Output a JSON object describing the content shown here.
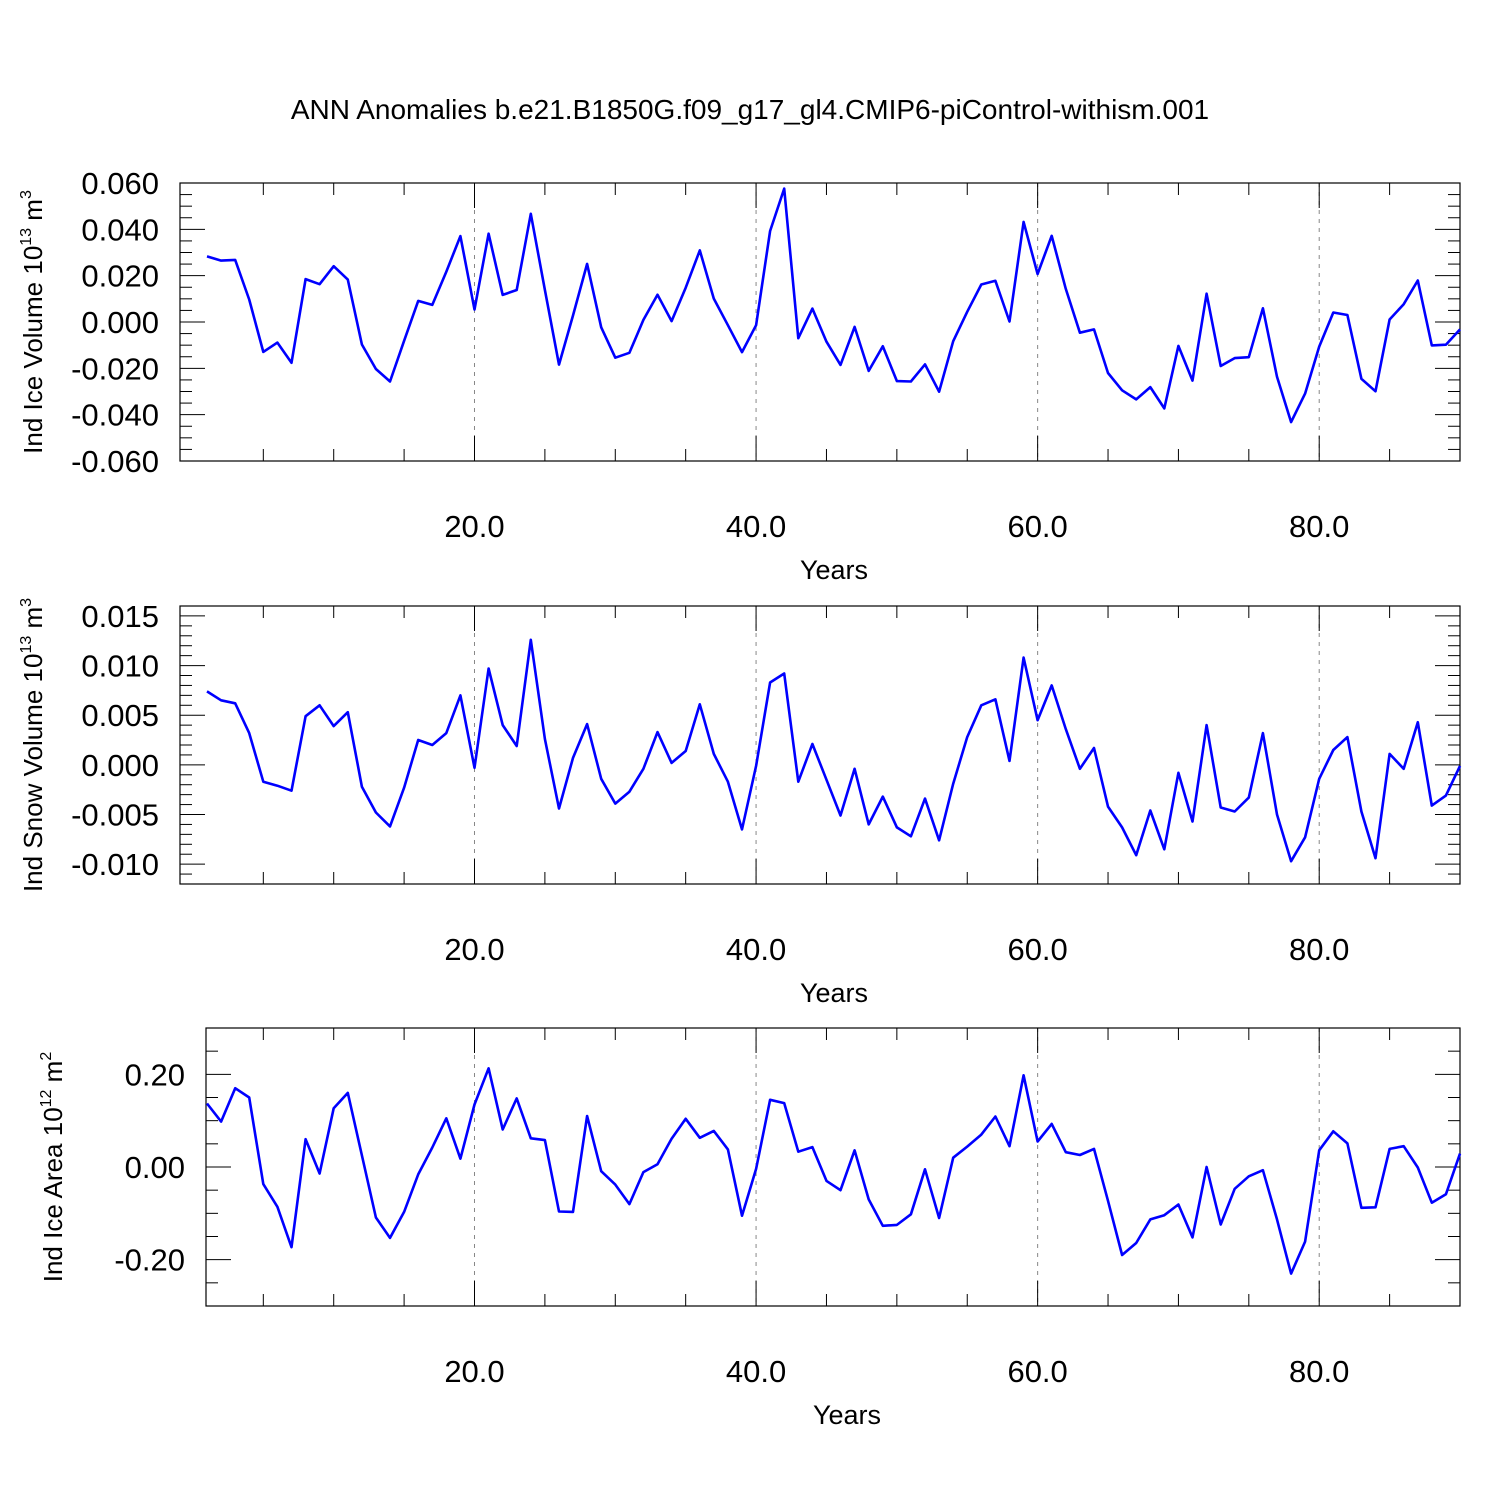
{
  "title": "ANN Anomalies b.e21.B1850G.f09_g17_gl4.CMIP6-piControl-withism.001",
  "chart_data": [
    {
      "type": "line",
      "ylabel": {
        "main": "Ind Ice Volume 10",
        "exp": "13",
        "unit": " m",
        "unit_exp": "3"
      },
      "xlabel": "Years",
      "xlim": [
        1,
        90
      ],
      "ylim": [
        -0.06,
        0.06
      ],
      "x_ticks": [
        20,
        40,
        60,
        80
      ],
      "x_tick_labels": [
        "20.0",
        "40.0",
        "60.0",
        "80.0"
      ],
      "y_ticks": [
        -0.06,
        -0.04,
        -0.02,
        0.0,
        0.02,
        0.04,
        0.06
      ],
      "y_tick_labels": [
        "-0.060",
        "-0.040",
        "-0.020",
        "0.000",
        "0.020",
        "0.040",
        "0.060"
      ],
      "y_minor_step": 0.005,
      "grid": "vertical dashed at major x ticks",
      "line_color": "#0000ff",
      "x_start": 1,
      "x_step": 1,
      "values": [
        0.0283,
        0.0265,
        0.0268,
        0.0097,
        -0.0129,
        -0.0089,
        -0.0176,
        0.0185,
        0.0163,
        0.0241,
        0.0183,
        -0.0097,
        -0.0203,
        -0.0257,
        -0.0081,
        0.0091,
        0.0074,
        0.0217,
        0.0371,
        0.0054,
        0.0381,
        0.0117,
        0.0138,
        0.0467,
        0.0138,
        -0.0184,
        0.0028,
        0.0251,
        -0.0023,
        -0.0154,
        -0.0133,
        0.0009,
        0.0118,
        0.0004,
        0.0148,
        0.0309,
        0.0101,
        -0.0014,
        -0.013,
        -0.0014,
        0.0393,
        0.0576,
        -0.007,
        0.0058,
        -0.0085,
        -0.0185,
        -0.0021,
        -0.0211,
        -0.0105,
        -0.0255,
        -0.0257,
        -0.0183,
        -0.0301,
        -0.0083,
        0.0044,
        0.0162,
        0.0178,
        0.0002,
        0.0432,
        0.0207,
        0.0372,
        0.0143,
        -0.0046,
        -0.0032,
        -0.022,
        -0.0295,
        -0.0334,
        -0.0281,
        -0.0373,
        -0.0103,
        -0.0253,
        0.0122,
        -0.019,
        -0.0156,
        -0.0152,
        0.0059,
        -0.0236,
        -0.0432,
        -0.0309,
        -0.0106,
        0.0041,
        0.003,
        -0.0245,
        -0.0299,
        0.0011,
        0.0077,
        0.0179,
        -0.0101,
        -0.0098,
        -0.0032
      ]
    },
    {
      "type": "line",
      "ylabel": {
        "main": "Ind Snow Volume 10",
        "exp": "13",
        "unit": " m",
        "unit_exp": "3"
      },
      "xlabel": "Years",
      "xlim": [
        1,
        90
      ],
      "ylim": [
        -0.012,
        0.016
      ],
      "x_ticks": [
        20,
        40,
        60,
        80
      ],
      "x_tick_labels": [
        "20.0",
        "40.0",
        "60.0",
        "80.0"
      ],
      "y_ticks": [
        -0.01,
        -0.005,
        0.0,
        0.005,
        0.01,
        0.015
      ],
      "y_tick_labels": [
        "-0.010",
        "-0.005",
        "0.000",
        "0.005",
        "0.010",
        "0.015"
      ],
      "y_minor_step": 0.001,
      "grid": "vertical dashed at major x ticks",
      "line_color": "#0000ff",
      "x_start": 1,
      "x_step": 1,
      "values": [
        0.0074,
        0.0065,
        0.0062,
        0.0032,
        -0.0017,
        -0.0021,
        -0.0026,
        0.0049,
        0.006,
        0.0039,
        0.0053,
        -0.0022,
        -0.0048,
        -0.0062,
        -0.0023,
        0.0025,
        0.002,
        0.0032,
        0.007,
        -0.0003,
        0.0097,
        0.004,
        0.0019,
        0.0126,
        0.0026,
        -0.0044,
        0.0007,
        0.0041,
        -0.0014,
        -0.0039,
        -0.0027,
        -0.0004,
        0.0033,
        0.0002,
        0.0014,
        0.0061,
        0.0011,
        -0.0017,
        -0.0065,
        -0.0001,
        0.0083,
        0.0092,
        -0.0017,
        0.0021,
        -0.0015,
        -0.0051,
        -0.0004,
        -0.006,
        -0.0032,
        -0.0063,
        -0.0072,
        -0.0034,
        -0.0076,
        -0.0019,
        0.0028,
        0.006,
        0.0066,
        0.0004,
        0.0108,
        0.0045,
        0.008,
        0.0036,
        -0.0004,
        0.0017,
        -0.0042,
        -0.0063,
        -0.0091,
        -0.0046,
        -0.0085,
        -0.0008,
        -0.0057,
        0.004,
        -0.0043,
        -0.0047,
        -0.0033,
        0.0032,
        -0.005,
        -0.0097,
        -0.0073,
        -0.0014,
        0.0015,
        0.0028,
        -0.0047,
        -0.0094,
        0.0011,
        -0.0004,
        0.0043,
        -0.0041,
        -0.0031,
        -0.0001
      ]
    },
    {
      "type": "line",
      "ylabel": {
        "main": "Ind Ice Area 10",
        "exp": "12",
        "unit": " m",
        "unit_exp": "2"
      },
      "xlabel": "Years",
      "xlim": [
        1,
        90
      ],
      "ylim": [
        -0.3,
        0.3
      ],
      "x_ticks": [
        20,
        40,
        60,
        80
      ],
      "x_tick_labels": [
        "20.0",
        "40.0",
        "60.0",
        "80.0"
      ],
      "y_ticks": [
        -0.2,
        0.0,
        0.2
      ],
      "y_tick_labels": [
        "-0.20",
        "0.00",
        "0.20"
      ],
      "y_minor_step": 0.05,
      "grid": "vertical dashed at major x ticks",
      "line_color": "#0000ff",
      "x_start": 1,
      "x_step": 1,
      "values": [
        0.137,
        0.098,
        0.17,
        0.15,
        -0.037,
        -0.086,
        -0.173,
        0.06,
        -0.014,
        0.127,
        0.16,
        0.025,
        -0.109,
        -0.153,
        -0.097,
        -0.016,
        0.042,
        0.105,
        0.018,
        0.135,
        0.213,
        0.081,
        0.148,
        0.062,
        0.058,
        -0.096,
        -0.097,
        0.11,
        -0.009,
        -0.038,
        -0.08,
        -0.011,
        0.006,
        0.061,
        0.104,
        0.063,
        0.078,
        0.038,
        -0.105,
        -0.004,
        0.145,
        0.138,
        0.033,
        0.043,
        -0.03,
        -0.05,
        0.036,
        -0.07,
        -0.127,
        -0.125,
        -0.102,
        -0.005,
        -0.11,
        0.02,
        0.044,
        0.07,
        0.109,
        0.045,
        0.198,
        0.055,
        0.093,
        0.032,
        0.026,
        0.039,
        -0.073,
        -0.19,
        -0.164,
        -0.113,
        -0.104,
        -0.081,
        -0.152,
        0.0,
        -0.124,
        -0.047,
        -0.02,
        -0.007,
        -0.113,
        -0.23,
        -0.161,
        0.036,
        0.077,
        0.051,
        -0.088,
        -0.087,
        0.039,
        0.045,
        -0.001,
        -0.077,
        -0.059,
        0.029
      ]
    }
  ]
}
